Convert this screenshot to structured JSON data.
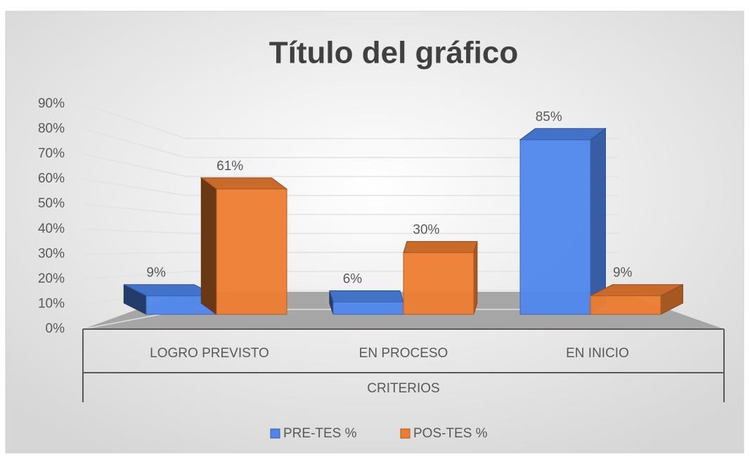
{
  "chart_data": {
    "type": "bar3d",
    "title": "Título del gráfico",
    "x_label": "CRITERIOS",
    "categories": [
      "LOGRO PREVISTO",
      "EN PROCESO",
      "EN INICIO"
    ],
    "series": [
      {
        "name": "PRE-TES %",
        "color": "#4f86ec",
        "values": [
          9,
          6,
          85
        ],
        "value_labels": [
          "9%",
          "6%",
          "85%"
        ]
      },
      {
        "name": "POS-TES %",
        "color": "#ed7d31",
        "values": [
          61,
          30,
          9
        ],
        "value_labels": [
          "61%",
          "30%",
          "9%"
        ]
      }
    ],
    "ylim": [
      0,
      90
    ],
    "yticks": [
      {
        "value": 0,
        "label": "0%"
      },
      {
        "value": 10,
        "label": "10%"
      },
      {
        "value": 20,
        "label": "20%"
      },
      {
        "value": 30,
        "label": "30%"
      },
      {
        "value": 40,
        "label": "40%"
      },
      {
        "value": 50,
        "label": "50%"
      },
      {
        "value": 60,
        "label": "60%"
      },
      {
        "value": 70,
        "label": "70%"
      },
      {
        "value": 80,
        "label": "80%"
      },
      {
        "value": 90,
        "label": "90%"
      }
    ],
    "grid": true,
    "legend": "bottom"
  }
}
